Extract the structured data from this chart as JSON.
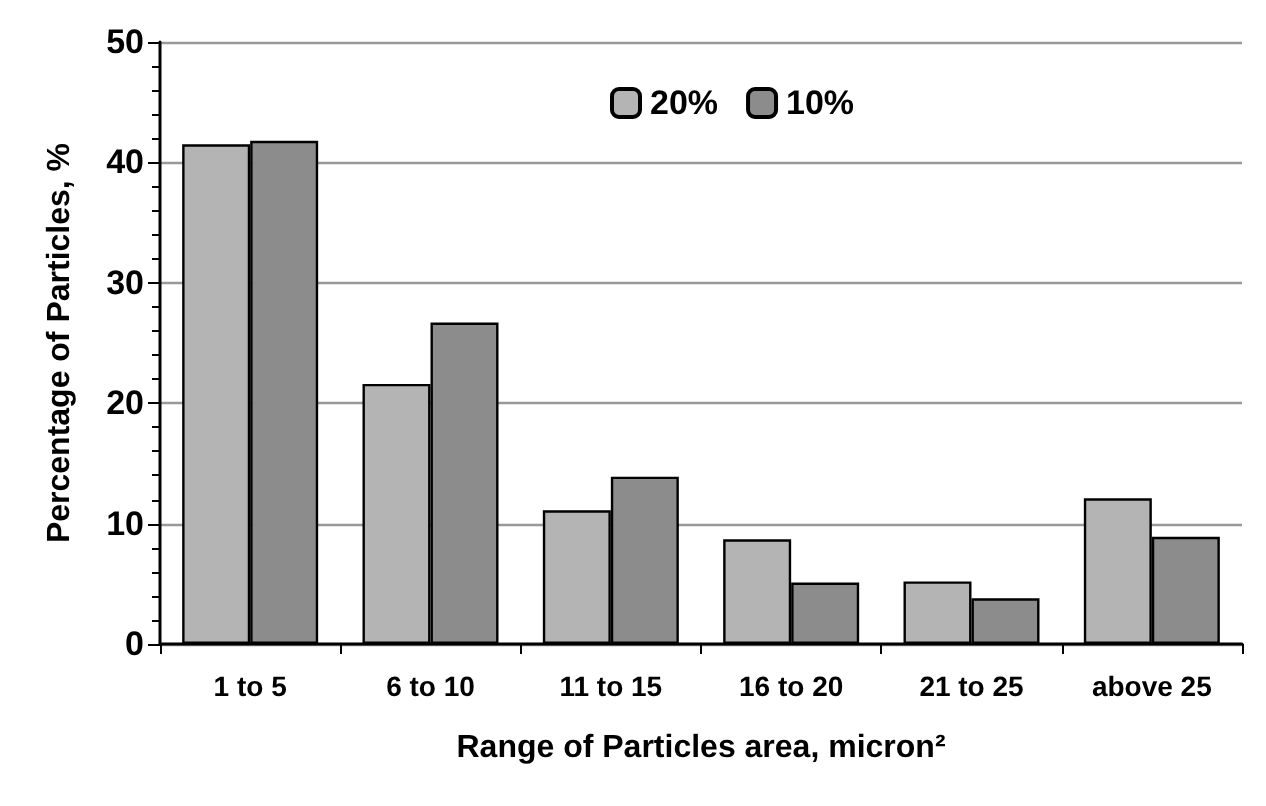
{
  "chart_data": {
    "type": "bar",
    "xlabel": "Range of Particles area, micron²",
    "ylabel": "Percentage of Particles, %",
    "categories": [
      "1 to 5",
      "6 to 10",
      "11 to 15",
      "16 to 20",
      "21 to 25",
      "above 25"
    ],
    "series": [
      {
        "name": "20%",
        "color": "#b4b4b4",
        "values": [
          41.5,
          21.6,
          11.1,
          8.7,
          5.2,
          12.1
        ]
      },
      {
        "name": "10%",
        "color": "#8c8c8c",
        "values": [
          41.8,
          26.7,
          13.9,
          5.1,
          3.8,
          8.9
        ]
      }
    ],
    "ylim": [
      0,
      50
    ],
    "yticks": [
      0,
      10,
      20,
      30,
      40,
      50
    ],
    "grid": "y",
    "legend": "top"
  }
}
